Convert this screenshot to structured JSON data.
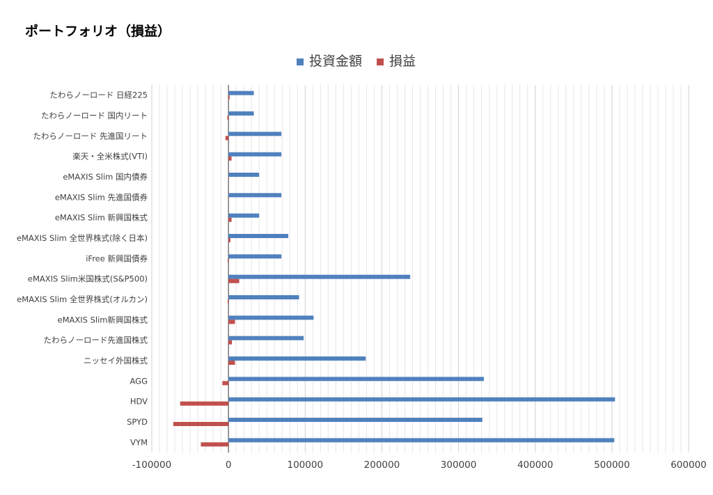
{
  "title": "ポートフォリオ（損益）",
  "chart_data": {
    "type": "bar",
    "orientation": "horizontal",
    "title": "ポートフォリオ（損益）",
    "categories": [
      "たわらノーロード 日経225",
      "たわらノーロード 国内リート",
      "たわらノーロード 先進国リート",
      "楽天・全米株式(VTI)",
      "eMAXIS Slim 国内債券",
      "eMAXIS Slim 先進国債券",
      "eMAXIS Slim 新興国株式",
      "eMAXIS Slim 全世界株式(除く日本)",
      "iFree 新興国債券",
      "eMAXIS Slim米国株式(S&P500)",
      "eMAXIS Slim 全世界株式(オルカン)",
      "eMAXIS Slim新興国株式",
      "たわらノーロード先進国株式",
      "ニッセイ外国株式",
      "AGG",
      "HDV",
      "SPYD",
      "VYM"
    ],
    "series": [
      {
        "name": "投資金額",
        "color": "#4f81bd",
        "values": [
          33000,
          33000,
          69000,
          69000,
          40000,
          69000,
          40000,
          78000,
          69000,
          237000,
          92000,
          111000,
          98000,
          179000,
          333000,
          504000,
          331000,
          503000
        ]
      },
      {
        "name": "損益",
        "color": "#c0504d",
        "values": [
          1500,
          -1500,
          -4000,
          4000,
          0,
          0,
          4000,
          2500,
          -1000,
          14000,
          -1000,
          8500,
          4500,
          8500,
          -8000,
          -63000,
          -72000,
          -36000
        ]
      }
    ],
    "xlim": [
      -100000,
      600000
    ],
    "x_ticks": [
      "-100000",
      "0",
      "100000",
      "200000",
      "300000",
      "400000",
      "500000",
      "600000"
    ],
    "legend_position": "top",
    "grid": true
  }
}
